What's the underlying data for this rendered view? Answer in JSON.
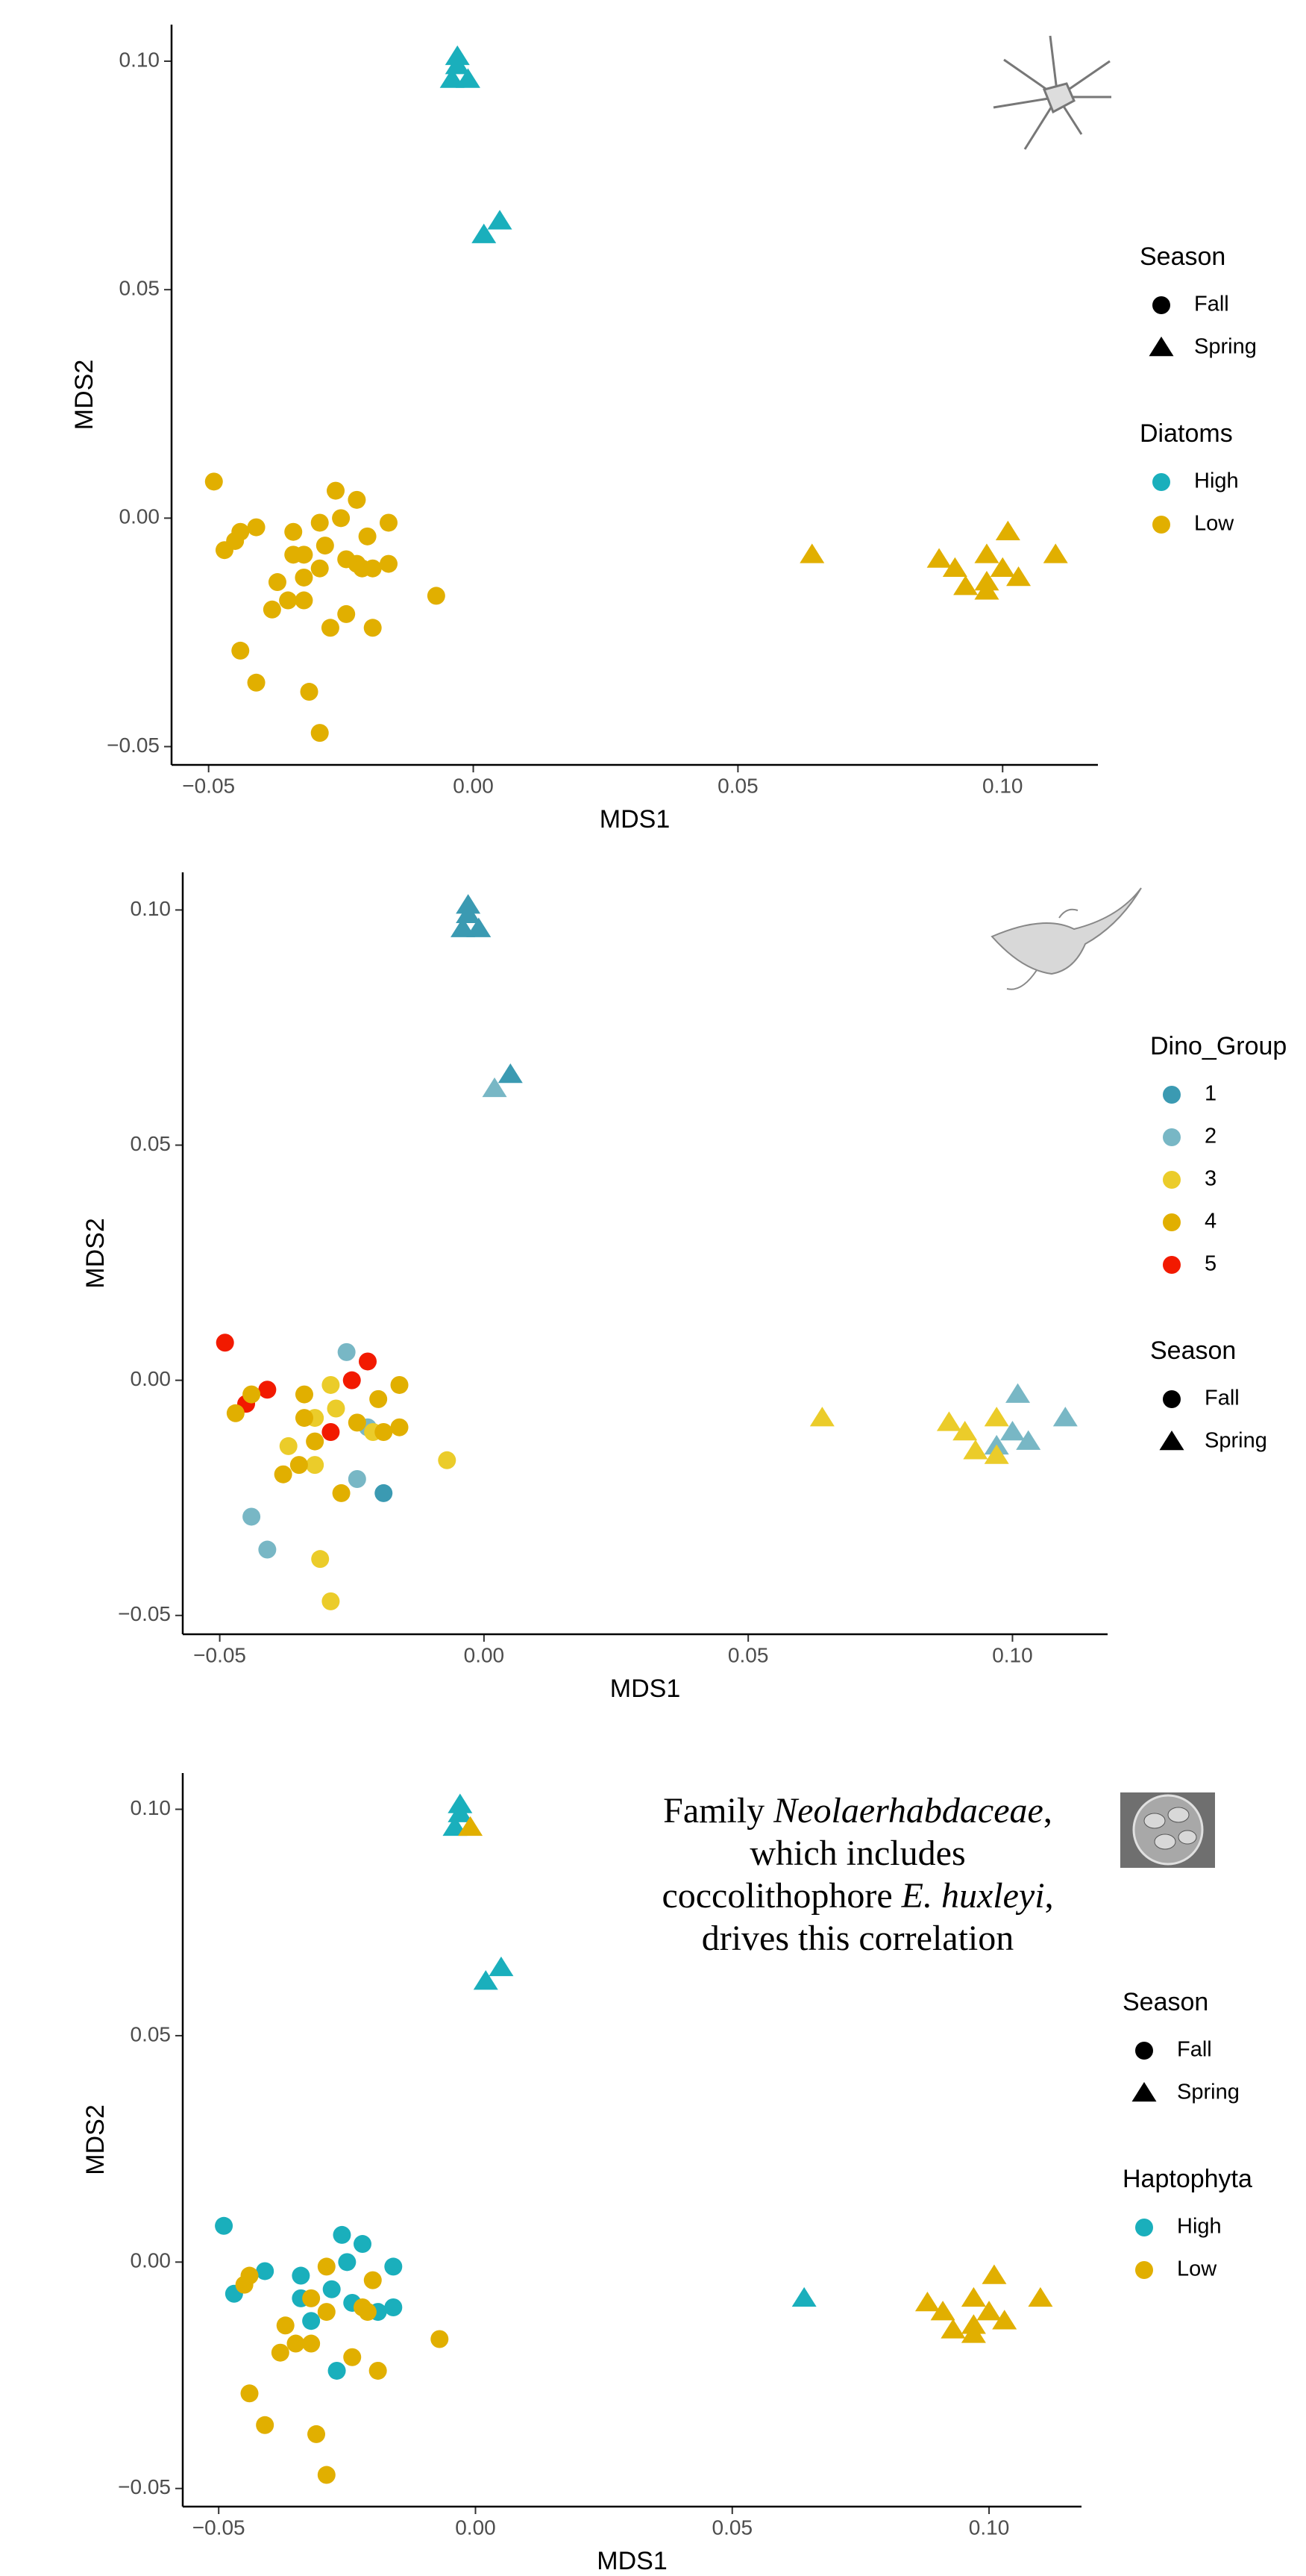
{
  "chart_data": [
    {
      "type": "scatter",
      "x_label": "MDS1",
      "y_label": "MDS2",
      "xlim": [
        -0.057,
        0.118
      ],
      "ylim": [
        -0.054,
        0.108
      ],
      "xticks": [
        {
          "value": -0.05,
          "label": "−0.05"
        },
        {
          "value": 0,
          "label": "0.00"
        },
        {
          "value": 0.05,
          "label": "0.05"
        },
        {
          "value": 0.1,
          "label": "0.10"
        }
      ],
      "yticks": [
        {
          "value": -0.05,
          "label": "−0.05"
        },
        {
          "value": 0,
          "label": "0.00"
        },
        {
          "value": 0.05,
          "label": "0.05"
        },
        {
          "value": 0.1,
          "label": "0.10"
        }
      ],
      "legend_position": "right",
      "legends": [
        {
          "title": "Season",
          "items": [
            {
              "label": "Fall",
              "shape": "circle"
            },
            {
              "label": "Spring",
              "shape": "triangle"
            }
          ]
        },
        {
          "title": "Diatoms",
          "items": [
            {
              "label": "High",
              "color": "#1aafbc"
            },
            {
              "label": "Low",
              "color": "#e1af00"
            }
          ]
        }
      ],
      "series": [
        {
          "color": "#e1af00",
          "shape": "circle",
          "x": [
            -0.049,
            -0.026,
            -0.022,
            -0.016,
            -0.02,
            -0.025,
            -0.029,
            -0.034,
            -0.032,
            -0.034,
            -0.032,
            -0.029,
            -0.028,
            -0.024,
            -0.022,
            -0.021,
            -0.019,
            -0.016,
            -0.041,
            -0.044,
            -0.045,
            -0.047,
            -0.037,
            -0.035,
            -0.032,
            -0.038,
            -0.027,
            -0.024,
            -0.019,
            -0.007,
            -0.044,
            -0.041,
            -0.031,
            -0.029
          ],
          "y": [
            0.008,
            0.006,
            0.004,
            -0.001,
            -0.004,
            0.0,
            -0.001,
            -0.003,
            -0.008,
            -0.008,
            -0.013,
            -0.011,
            -0.006,
            -0.009,
            -0.01,
            -0.011,
            -0.011,
            -0.01,
            -0.002,
            -0.003,
            -0.005,
            -0.007,
            -0.014,
            -0.018,
            -0.018,
            -0.02,
            -0.024,
            -0.021,
            -0.024,
            -0.017,
            -0.029,
            -0.036,
            -0.038,
            -0.047
          ]
        },
        {
          "color": "#1aafbc",
          "shape": "triangle",
          "x": [
            -0.003,
            -0.004,
            -0.001,
            -0.003,
            0.002,
            0.005
          ],
          "y": [
            0.101,
            0.096,
            0.096,
            0.099,
            0.062,
            0.065
          ]
        },
        {
          "color": "#e1af00",
          "shape": "triangle",
          "x": [
            0.064,
            0.088,
            0.101,
            0.11,
            0.091,
            0.093,
            0.097,
            0.097,
            0.1,
            0.103,
            0.097
          ],
          "y": [
            -0.008,
            -0.009,
            -0.003,
            -0.008,
            -0.011,
            -0.015,
            -0.008,
            -0.014,
            -0.011,
            -0.013,
            -0.016
          ]
        }
      ]
    },
    {
      "type": "scatter",
      "x_label": "MDS1",
      "y_label": "MDS2",
      "xlim": [
        -0.057,
        0.118
      ],
      "ylim": [
        -0.054,
        0.108
      ],
      "xticks": [
        {
          "value": -0.05,
          "label": "−0.05"
        },
        {
          "value": 0,
          "label": "0.00"
        },
        {
          "value": 0.05,
          "label": "0.05"
        },
        {
          "value": 0.1,
          "label": "0.10"
        }
      ],
      "yticks": [
        {
          "value": -0.05,
          "label": "−0.05"
        },
        {
          "value": 0,
          "label": "0.00"
        },
        {
          "value": 0.05,
          "label": "0.05"
        },
        {
          "value": 0.1,
          "label": "0.10"
        }
      ],
      "legend_position": "right",
      "legends": [
        {
          "title": "Dino_Group",
          "items": [
            {
              "label": "1",
              "color": "#3b9ab2"
            },
            {
              "label": "2",
              "color": "#78b7c5"
            },
            {
              "label": "3",
              "color": "#ebcc2a"
            },
            {
              "label": "4",
              "color": "#e1af00"
            },
            {
              "label": "5",
              "color": "#f21a00"
            }
          ]
        },
        {
          "title": "Season",
          "items": [
            {
              "label": "Fall",
              "shape": "circle"
            },
            {
              "label": "Spring",
              "shape": "triangle"
            }
          ]
        }
      ],
      "series": [
        {
          "color": "#f21a00",
          "shape": "circle",
          "x": [
            -0.049,
            -0.022,
            -0.025,
            -0.029,
            -0.041,
            -0.045
          ],
          "y": [
            0.008,
            0.004,
            0.0,
            -0.011,
            -0.002,
            -0.005
          ]
        },
        {
          "color": "#78b7c5",
          "shape": "circle",
          "x": [
            -0.026,
            -0.022,
            -0.024,
            -0.044,
            -0.041
          ],
          "y": [
            0.006,
            -0.01,
            -0.021,
            -0.029,
            -0.036
          ]
        },
        {
          "color": "#3b9ab2",
          "shape": "circle",
          "x": [
            -0.019
          ],
          "y": [
            -0.024
          ]
        },
        {
          "color": "#ebcc2a",
          "shape": "circle",
          "x": [
            -0.029,
            -0.032,
            -0.028,
            -0.021,
            -0.037,
            -0.032,
            -0.007,
            -0.031,
            -0.029
          ],
          "y": [
            -0.001,
            -0.008,
            -0.006,
            -0.011,
            -0.014,
            -0.018,
            -0.017,
            -0.038,
            -0.047
          ]
        },
        {
          "color": "#e1af00",
          "shape": "circle",
          "x": [
            -0.016,
            -0.02,
            -0.034,
            -0.034,
            -0.032,
            -0.024,
            -0.019,
            -0.016,
            -0.044,
            -0.047,
            -0.035,
            -0.038,
            -0.027
          ],
          "y": [
            -0.001,
            -0.004,
            -0.003,
            -0.008,
            -0.013,
            -0.009,
            -0.011,
            -0.01,
            -0.003,
            -0.007,
            -0.018,
            -0.02,
            -0.024
          ]
        },
        {
          "color": "#3b9ab2",
          "shape": "triangle",
          "x": [
            -0.003,
            -0.004,
            -0.001,
            -0.003,
            0.005
          ],
          "y": [
            0.101,
            0.096,
            0.096,
            0.099,
            0.065
          ]
        },
        {
          "color": "#78b7c5",
          "shape": "triangle",
          "x": [
            0.002,
            0.101,
            0.11,
            0.097,
            0.1,
            0.103
          ],
          "y": [
            0.062,
            -0.003,
            -0.008,
            -0.014,
            -0.011,
            -0.013
          ]
        },
        {
          "color": "#ebcc2a",
          "shape": "triangle",
          "x": [
            0.064,
            0.088,
            0.091,
            0.093,
            0.097,
            0.097
          ],
          "y": [
            -0.008,
            -0.009,
            -0.011,
            -0.015,
            -0.008,
            -0.016
          ]
        }
      ]
    },
    {
      "type": "scatter",
      "x_label": "MDS1",
      "y_label": "MDS2",
      "xlim": [
        -0.057,
        0.118
      ],
      "ylim": [
        -0.054,
        0.108
      ],
      "xticks": [
        {
          "value": -0.05,
          "label": "−0.05"
        },
        {
          "value": 0,
          "label": "0.00"
        },
        {
          "value": 0.05,
          "label": "0.05"
        },
        {
          "value": 0.1,
          "label": "0.10"
        }
      ],
      "yticks": [
        {
          "value": -0.05,
          "label": "−0.05"
        },
        {
          "value": 0,
          "label": "0.00"
        },
        {
          "value": 0.05,
          "label": "0.05"
        },
        {
          "value": 0.1,
          "label": "0.10"
        }
      ],
      "legend_position": "right",
      "annotation": [
        [
          {
            "text": "Family "
          },
          {
            "text": "Neolaerhabdaceae",
            "italic": true
          },
          {
            "text": ","
          }
        ],
        [
          {
            "text": "which includes"
          }
        ],
        [
          {
            "text": "coccolithophore "
          },
          {
            "text": "E. huxleyi",
            "italic": true
          },
          {
            "text": ","
          }
        ],
        [
          {
            "text": "drives this correlation"
          }
        ]
      ],
      "legends": [
        {
          "title": "Season",
          "items": [
            {
              "label": "Fall",
              "shape": "circle"
            },
            {
              "label": "Spring",
              "shape": "triangle"
            }
          ]
        },
        {
          "title": "Haptophyta",
          "items": [
            {
              "label": "High",
              "color": "#1aafbc"
            },
            {
              "label": "Low",
              "color": "#e1af00"
            }
          ]
        }
      ],
      "series": [
        {
          "color": "#1aafbc",
          "shape": "circle",
          "x": [
            -0.049,
            -0.026,
            -0.022,
            -0.016,
            -0.025,
            -0.034,
            -0.034,
            -0.032,
            -0.028,
            -0.024,
            -0.019,
            -0.016,
            -0.041,
            -0.047,
            -0.027
          ],
          "y": [
            0.008,
            0.006,
            0.004,
            -0.001,
            0.0,
            -0.003,
            -0.008,
            -0.013,
            -0.006,
            -0.009,
            -0.011,
            -0.01,
            -0.002,
            -0.007,
            -0.024
          ]
        },
        {
          "color": "#e1af00",
          "shape": "circle",
          "x": [
            -0.02,
            -0.029,
            -0.032,
            -0.029,
            -0.022,
            -0.021,
            -0.044,
            -0.045,
            -0.037,
            -0.035,
            -0.032,
            -0.038,
            -0.024,
            -0.019,
            -0.007,
            -0.044,
            -0.041,
            -0.031,
            -0.029
          ],
          "y": [
            -0.004,
            -0.001,
            -0.008,
            -0.011,
            -0.01,
            -0.011,
            -0.003,
            -0.005,
            -0.014,
            -0.018,
            -0.018,
            -0.02,
            -0.021,
            -0.024,
            -0.017,
            -0.029,
            -0.036,
            -0.038,
            -0.047
          ]
        },
        {
          "color": "#1aafbc",
          "shape": "triangle",
          "x": [
            -0.003,
            -0.004,
            -0.003,
            0.002,
            0.005,
            0.064
          ],
          "y": [
            0.101,
            0.096,
            0.099,
            0.062,
            0.065,
            -0.008
          ]
        },
        {
          "color": "#e1af00",
          "shape": "triangle",
          "x": [
            -0.001,
            0.088,
            0.101,
            0.11,
            0.091,
            0.093,
            0.097,
            0.097,
            0.1,
            0.103,
            0.097
          ],
          "y": [
            0.096,
            -0.009,
            -0.003,
            -0.008,
            -0.011,
            -0.015,
            -0.008,
            -0.014,
            -0.011,
            -0.013,
            -0.016
          ]
        }
      ]
    }
  ]
}
